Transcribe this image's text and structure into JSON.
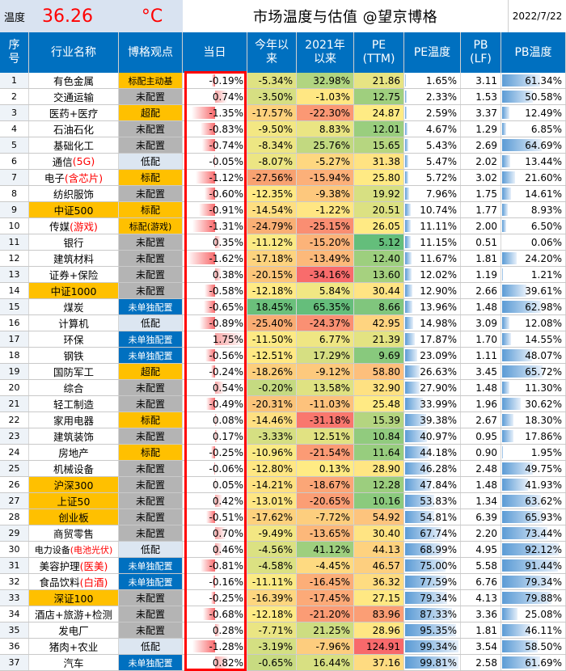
{
  "header": {
    "temp_label": "温度",
    "temp_value": "36.26",
    "temp_unit": "°C",
    "title": "市场温度与估值 @望京博格",
    "date": "2022/7/22"
  },
  "columns": [
    "序\n号",
    "行业名称",
    "博格观点",
    "当日",
    "今年以\n来",
    "2021年\n以来",
    "PE\n(TTM)",
    "PE温度",
    "PB\n(LF)",
    "PB温度"
  ],
  "colors": {
    "header_bg": "#0070c0",
    "temp_panel_bg": "#d9e3f1",
    "view_standard_bg": "#ffc000",
    "view_underweight_bg": "#b4b4b4",
    "view_low_bg": "#dce6f1",
    "view_single_bg": "#0070c0",
    "bar_red": "#f8696b",
    "bar_blue": "#5b9bd5",
    "highlight_frame": "#ff0000",
    "pe_temp_high": "#5b9bd5"
  },
  "rows": [
    {
      "no": "1",
      "name": "有色金属",
      "name_hl": "",
      "view": "标配主动基",
      "today": "-0.19%",
      "ytd": "-5.34%",
      "since2021": "32.98%",
      "pe": "21.86",
      "pe_temp": "1.65%",
      "pb": "3.11",
      "pb_temp": "61.34%"
    },
    {
      "no": "2",
      "name": "交通运输",
      "name_hl": "",
      "view": "未配置",
      "today": "0.74%",
      "ytd": "-3.50%",
      "since2021": "-1.03%",
      "pe": "12.75",
      "pe_temp": "2.33%",
      "pb": "1.53",
      "pb_temp": "50.58%"
    },
    {
      "no": "3",
      "name": "医药+医疗",
      "name_hl": "",
      "view": "超配",
      "today": "-1.35%",
      "ytd": "-17.57%",
      "since2021": "-22.30%",
      "pe": "24.87",
      "pe_temp": "2.59%",
      "pb": "3.37",
      "pb_temp": "12.49%"
    },
    {
      "no": "4",
      "name": "石油石化",
      "name_hl": "",
      "view": "未配置",
      "today": "-0.83%",
      "ytd": "-9.50%",
      "since2021": "8.83%",
      "pe": "12.01",
      "pe_temp": "4.67%",
      "pb": "1.29",
      "pb_temp": "6.85%"
    },
    {
      "no": "5",
      "name": "基础化工",
      "name_hl": "",
      "view": "未配置",
      "today": "-0.74%",
      "ytd": "-8.34%",
      "since2021": "25.76%",
      "pe": "15.65",
      "pe_temp": "5.43%",
      "pb": "2.69",
      "pb_temp": "64.69%"
    },
    {
      "no": "6",
      "name": "通信",
      "name_hl": "(5G)",
      "view": "低配",
      "today": "-0.05%",
      "ytd": "-8.07%",
      "since2021": "-5.27%",
      "pe": "31.38",
      "pe_temp": "5.47%",
      "pb": "2.02",
      "pb_temp": "13.44%"
    },
    {
      "no": "7",
      "name": "电子",
      "name_hl": "(含芯片)",
      "view": "标配",
      "today": "-1.12%",
      "ytd": "-27.56%",
      "since2021": "-15.94%",
      "pe": "25.80",
      "pe_temp": "5.72%",
      "pb": "3.02",
      "pb_temp": "21.60%"
    },
    {
      "no": "8",
      "name": "纺织服饰",
      "name_hl": "",
      "view": "未配置",
      "today": "-0.60%",
      "ytd": "-12.35%",
      "since2021": "-9.38%",
      "pe": "19.92",
      "pe_temp": "7.96%",
      "pb": "1.75",
      "pb_temp": "14.61%"
    },
    {
      "no": "9",
      "name": "中证500",
      "name_hl": "",
      "view": "标配",
      "today": "-0.91%",
      "ytd": "-14.54%",
      "since2021": "-1.22%",
      "pe": "20.51",
      "pe_temp": "10.74%",
      "pb": "1.77",
      "pb_temp": "8.93%"
    },
    {
      "no": "10",
      "name": "传媒",
      "name_hl": "(游戏)",
      "view": "标配(游戏)",
      "today": "-1.31%",
      "ytd": "-24.79%",
      "since2021": "-25.15%",
      "pe": "26.05",
      "pe_temp": "11.11%",
      "pb": "2.00",
      "pb_temp": "6.50%"
    },
    {
      "no": "11",
      "name": "银行",
      "name_hl": "",
      "view": "未配置",
      "today": "0.35%",
      "ytd": "-11.12%",
      "since2021": "-15.20%",
      "pe": "5.12",
      "pe_temp": "11.15%",
      "pb": "0.51",
      "pb_temp": "0.06%"
    },
    {
      "no": "12",
      "name": "建筑材料",
      "name_hl": "",
      "view": "未配置",
      "today": "-1.62%",
      "ytd": "-17.18%",
      "since2021": "-13.49%",
      "pe": "12.40",
      "pe_temp": "11.67%",
      "pb": "1.81",
      "pb_temp": "24.20%"
    },
    {
      "no": "13",
      "name": "证券+保险",
      "name_hl": "",
      "view": "未配置",
      "today": "0.38%",
      "ytd": "-20.15%",
      "since2021": "-34.16%",
      "pe": "13.60",
      "pe_temp": "12.02%",
      "pb": "1.19",
      "pb_temp": "1.21%"
    },
    {
      "no": "14",
      "name": "中证1000",
      "name_hl": "",
      "view": "未配置",
      "today": "-0.58%",
      "ytd": "-12.18%",
      "since2021": "5.84%",
      "pe": "30.44",
      "pe_temp": "12.90%",
      "pb": "2.66",
      "pb_temp": "39.61%"
    },
    {
      "no": "15",
      "name": "煤炭",
      "name_hl": "",
      "view": "未单独配置",
      "today": "-0.65%",
      "ytd": "18.45%",
      "since2021": "65.35%",
      "pe": "8.66",
      "pe_temp": "13.96%",
      "pb": "1.48",
      "pb_temp": "62.98%"
    },
    {
      "no": "16",
      "name": "计算机",
      "name_hl": "",
      "view": "低配",
      "today": "-0.89%",
      "ytd": "-25.40%",
      "since2021": "-24.37%",
      "pe": "42.95",
      "pe_temp": "14.98%",
      "pb": "3.09",
      "pb_temp": "12.08%"
    },
    {
      "no": "17",
      "name": "环保",
      "name_hl": "",
      "view": "未单独配置",
      "today": "1.75%",
      "ytd": "-11.50%",
      "since2021": "6.77%",
      "pe": "21.39",
      "pe_temp": "17.87%",
      "pb": "1.70",
      "pb_temp": "14.55%"
    },
    {
      "no": "18",
      "name": "钢铁",
      "name_hl": "",
      "view": "未单独配置",
      "today": "-0.56%",
      "ytd": "-12.51%",
      "since2021": "17.29%",
      "pe": "9.69",
      "pe_temp": "23.09%",
      "pb": "1.11",
      "pb_temp": "48.07%"
    },
    {
      "no": "19",
      "name": "国防军工",
      "name_hl": "",
      "view": "超配",
      "today": "-0.24%",
      "ytd": "-18.26%",
      "since2021": "-9.12%",
      "pe": "58.80",
      "pe_temp": "26.63%",
      "pb": "3.45",
      "pb_temp": "65.72%"
    },
    {
      "no": "20",
      "name": "综合",
      "name_hl": "",
      "view": "未配置",
      "today": "0.54%",
      "ytd": "-0.20%",
      "since2021": "13.58%",
      "pe": "32.90",
      "pe_temp": "27.90%",
      "pb": "1.48",
      "pb_temp": "11.30%"
    },
    {
      "no": "21",
      "name": "轻工制造",
      "name_hl": "",
      "view": "未配置",
      "today": "-0.49%",
      "ytd": "-20.31%",
      "since2021": "-11.03%",
      "pe": "25.48",
      "pe_temp": "33.99%",
      "pb": "1.96",
      "pb_temp": "30.62%"
    },
    {
      "no": "22",
      "name": "家用电器",
      "name_hl": "",
      "view": "标配",
      "today": "0.08%",
      "ytd": "-14.46%",
      "since2021": "-31.18%",
      "pe": "15.39",
      "pe_temp": "39.38%",
      "pb": "2.67",
      "pb_temp": "18.30%"
    },
    {
      "no": "23",
      "name": "建筑装饰",
      "name_hl": "",
      "view": "未配置",
      "today": "0.17%",
      "ytd": "-3.33%",
      "since2021": "12.51%",
      "pe": "10.84",
      "pe_temp": "40.97%",
      "pb": "0.95",
      "pb_temp": "17.86%"
    },
    {
      "no": "24",
      "name": "房地产",
      "name_hl": "",
      "view": "标配",
      "today": "-0.25%",
      "ytd": "-10.96%",
      "since2021": "-21.54%",
      "pe": "11.64",
      "pe_temp": "44.18%",
      "pb": "0.90",
      "pb_temp": "1.95%"
    },
    {
      "no": "25",
      "name": "机械设备",
      "name_hl": "",
      "view": "未配置",
      "today": "-0.06%",
      "ytd": "-12.80%",
      "since2021": "0.13%",
      "pe": "28.90",
      "pe_temp": "46.28%",
      "pb": "2.48",
      "pb_temp": "49.75%"
    },
    {
      "no": "26",
      "name": "沪深300",
      "name_hl": "",
      "view": "未配置",
      "today": "0.05%",
      "ytd": "-14.21%",
      "since2021": "-18.67%",
      "pe": "12.28",
      "pe_temp": "47.84%",
      "pb": "1.48",
      "pb_temp": "41.93%"
    },
    {
      "no": "27",
      "name": "上证50",
      "name_hl": "",
      "view": "未配置",
      "today": "0.42%",
      "ytd": "-13.01%",
      "since2021": "-20.65%",
      "pe": "10.16",
      "pe_temp": "53.83%",
      "pb": "1.34",
      "pb_temp": "63.62%"
    },
    {
      "no": "28",
      "name": "创业板",
      "name_hl": "",
      "view": "未配置",
      "today": "-0.51%",
      "ytd": "-17.62%",
      "since2021": "-7.72%",
      "pe": "54.92",
      "pe_temp": "54.81%",
      "pb": "6.39",
      "pb_temp": "65.93%"
    },
    {
      "no": "29",
      "name": "商贸零售",
      "name_hl": "",
      "view": "未配置",
      "today": "0.70%",
      "ytd": "-9.49%",
      "since2021": "-13.65%",
      "pe": "30.40",
      "pe_temp": "67.74%",
      "pb": "2.20",
      "pb_temp": "73.44%"
    },
    {
      "no": "30",
      "name": "电力设备",
      "name_hl": "(电池光伏)",
      "view": "低配",
      "today": "0.46%",
      "ytd": "-4.56%",
      "since2021": "41.12%",
      "pe": "44.13",
      "pe_temp": "68.99%",
      "pb": "4.95",
      "pb_temp": "92.12%"
    },
    {
      "no": "31",
      "name": "美容护理",
      "name_hl": "(医美)",
      "view": "未单独配置",
      "today": "-0.81%",
      "ytd": "-4.58%",
      "since2021": "-4.45%",
      "pe": "46.57",
      "pe_temp": "75.00%",
      "pb": "5.58",
      "pb_temp": "91.44%"
    },
    {
      "no": "32",
      "name": "食品饮料",
      "name_hl": "(白酒)",
      "view": "未单独配置",
      "today": "-0.16%",
      "ytd": "-11.11%",
      "since2021": "-16.45%",
      "pe": "36.32",
      "pe_temp": "77.59%",
      "pb": "6.76",
      "pb_temp": "79.34%"
    },
    {
      "no": "33",
      "name": "深证100",
      "name_hl": "",
      "view": "未配置",
      "today": "-0.25%",
      "ytd": "-16.39%",
      "since2021": "-17.45%",
      "pe": "27.15",
      "pe_temp": "79.34%",
      "pb": "4.13",
      "pb_temp": "79.88%"
    },
    {
      "no": "34",
      "name": "酒店+旅游+检测",
      "name_hl": "",
      "view": "未配置",
      "today": "-0.68%",
      "ytd": "-12.18%",
      "since2021": "-21.20%",
      "pe": "83.96",
      "pe_temp": "87.33%",
      "pb": "3.36",
      "pb_temp": "25.08%"
    },
    {
      "no": "35",
      "name": "发电厂",
      "name_hl": "",
      "view": "未配置",
      "today": "0.28%",
      "ytd": "-7.71%",
      "since2021": "21.25%",
      "pe": "28.96",
      "pe_temp": "95.35%",
      "pb": "1.81",
      "pb_temp": "46.11%"
    },
    {
      "no": "36",
      "name": "猪肉+农业",
      "name_hl": "",
      "view": "低配",
      "today": "-1.28%",
      "ytd": "-3.19%",
      "since2021": "-7.96%",
      "pe": "124.91",
      "pe_temp": "99.34%",
      "pb": "3.54",
      "pb_temp": "58.50%"
    },
    {
      "no": "37",
      "name": "汽车",
      "name_hl": "",
      "view": "未单独配置",
      "today": "0.82%",
      "ytd": "-0.65%",
      "since2021": "16.44%",
      "pe": "37.16",
      "pe_temp": "99.81%",
      "pb": "2.58",
      "pb_temp": "61.69%"
    }
  ]
}
